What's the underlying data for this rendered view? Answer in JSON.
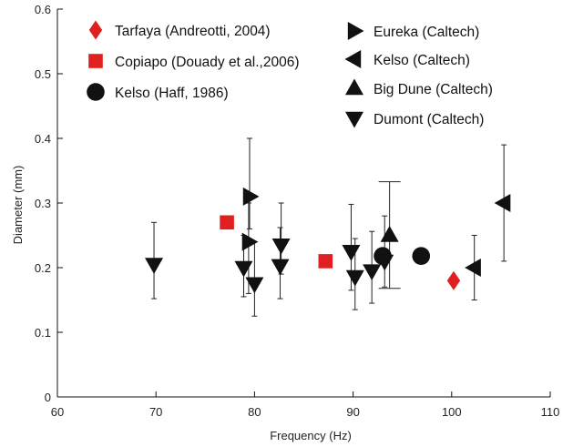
{
  "chart_data": {
    "type": "scatter",
    "xlabel": "Frequency (Hz)",
    "ylabel": "Diameter (mm)",
    "xlim": [
      60,
      110
    ],
    "ylim": [
      0,
      0.6
    ],
    "xticks": [
      "60",
      "70",
      "80",
      "90",
      "100",
      "110"
    ],
    "yticks": [
      "0",
      "0.1",
      "0.2",
      "0.3",
      "0.4",
      "0.5",
      "0.6"
    ],
    "grid": false,
    "legend_placement": "top",
    "series": [
      {
        "name": "Tarfaya (Andreotti, 2004)",
        "marker": "diamond",
        "color": "#e02020",
        "points": [
          {
            "x": 100.2,
            "y": 0.18
          }
        ]
      },
      {
        "name": "Copiapo (Douady et al.,2006)",
        "marker": "square",
        "color": "#e02020",
        "points": [
          {
            "x": 77.2,
            "y": 0.27
          },
          {
            "x": 87.2,
            "y": 0.21
          }
        ]
      },
      {
        "name": "Kelso (Haff, 1986)",
        "marker": "circle",
        "color": "#111111",
        "points": [
          {
            "x": 93.0,
            "y": 0.218
          },
          {
            "x": 96.9,
            "y": 0.218
          }
        ]
      },
      {
        "name": "Eureka (Caltech)",
        "marker": "triangle-right",
        "color": "#111111",
        "points": [
          {
            "x": 79.5,
            "y": 0.31,
            "err_low": 0.26,
            "err_high": 0.4
          },
          {
            "x": 79.4,
            "y": 0.24,
            "err_low": 0.16,
            "err_high": 0.3
          }
        ]
      },
      {
        "name": "Kelso (Caltech)",
        "marker": "triangle-left",
        "color": "#111111",
        "points": [
          {
            "x": 105.3,
            "y": 0.3,
            "err_low": 0.21,
            "err_high": 0.39
          },
          {
            "x": 102.3,
            "y": 0.2,
            "err_low": 0.15,
            "err_high": 0.25
          }
        ]
      },
      {
        "name": "Big Dune (Caltech)",
        "marker": "triangle-up",
        "color": "#111111",
        "points": [
          {
            "x": 93.7,
            "y": 0.25,
            "err_low": 0.168,
            "err_high": 0.333,
            "capped": true
          }
        ]
      },
      {
        "name": "Dumont (Caltech)",
        "marker": "triangle-down",
        "color": "#111111",
        "points": [
          {
            "x": 69.8,
            "y": 0.205,
            "err_low": 0.152,
            "err_high": 0.27
          },
          {
            "x": 78.9,
            "y": 0.2,
            "err_low": 0.155,
            "err_high": 0.25
          },
          {
            "x": 80.0,
            "y": 0.175,
            "err_low": 0.125,
            "err_high": 0.24
          },
          {
            "x": 82.7,
            "y": 0.235,
            "err_low": 0.19,
            "err_high": 0.3
          },
          {
            "x": 82.6,
            "y": 0.203,
            "err_low": 0.152,
            "err_high": 0.262
          },
          {
            "x": 89.8,
            "y": 0.225,
            "err_low": 0.165,
            "err_high": 0.298
          },
          {
            "x": 90.2,
            "y": 0.186,
            "err_low": 0.135,
            "err_high": 0.245
          },
          {
            "x": 91.9,
            "y": 0.195,
            "err_low": 0.145,
            "err_high": 0.256
          },
          {
            "x": 93.2,
            "y": 0.21,
            "err_low": 0.17,
            "err_high": 0.28
          }
        ]
      }
    ]
  }
}
